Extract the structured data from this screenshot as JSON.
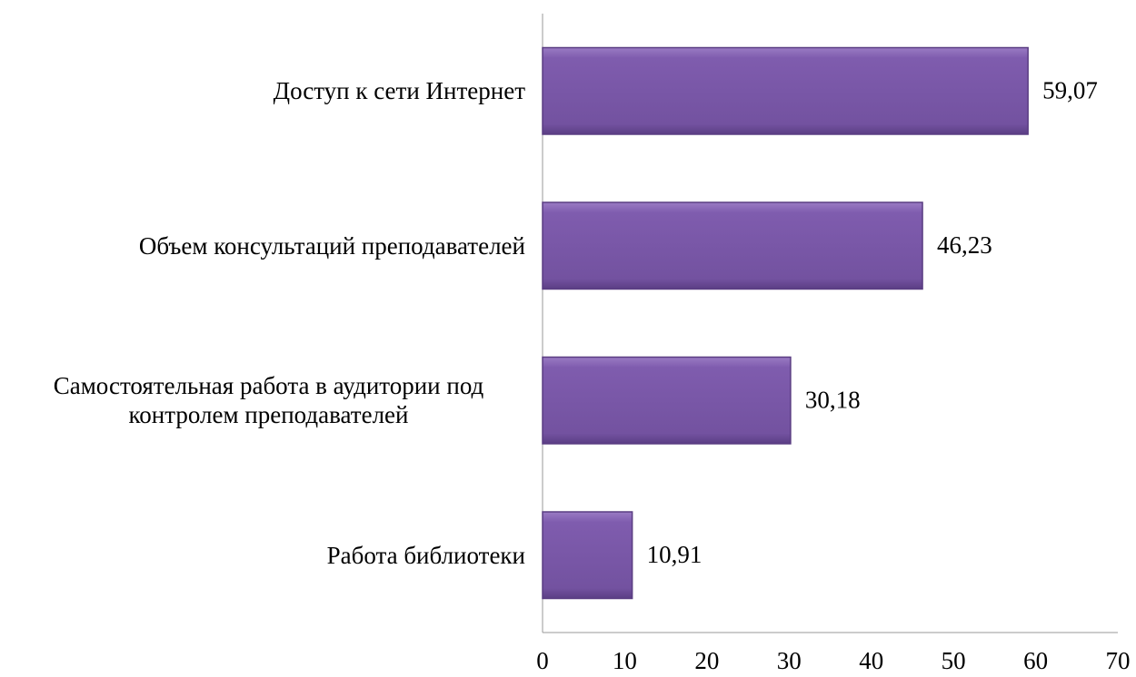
{
  "chart_data": {
    "type": "bar",
    "orientation": "horizontal",
    "categories": [
      "Доступ к сети Интернет",
      "Объем консультаций преподавателей",
      "Самостоятельная работа в аудитории под контролем преподавателей",
      "Работа библиотеки"
    ],
    "values": [
      59.07,
      46.23,
      30.18,
      10.91
    ],
    "value_labels": [
      "59,07",
      "46,23",
      "30,18",
      "10,91"
    ],
    "color": "#7a58a8",
    "xlim": [
      0,
      70
    ],
    "xticks": [
      0,
      10,
      20,
      30,
      40,
      50,
      60,
      70
    ],
    "grid": false
  }
}
